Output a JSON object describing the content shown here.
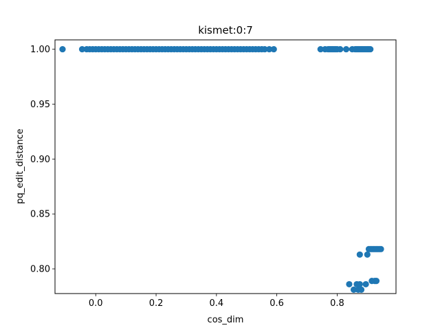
{
  "chart_data": {
    "type": "scatter",
    "title": "kismet:0:7",
    "xlabel": "cos_dim",
    "ylabel": "pq_edit_distance",
    "xlim": [
      -0.135,
      0.995
    ],
    "ylim": [
      0.7775,
      1.0085
    ],
    "xticks": [
      0.0,
      0.2,
      0.4,
      0.6,
      0.8
    ],
    "xtick_labels": [
      "0.0",
      "0.2",
      "0.4",
      "0.6",
      "0.8"
    ],
    "yticks": [
      0.8,
      0.85,
      0.9,
      0.95,
      1.0
    ],
    "ytick_labels": [
      "0.80",
      "0.85",
      "0.90",
      "0.95",
      "1.00"
    ],
    "grid": false,
    "color": "#1f77b4",
    "series": [
      {
        "points": [
          [
            -0.11,
            1.0
          ],
          [
            -0.045,
            1.0
          ],
          [
            -0.03,
            1.0
          ],
          [
            -0.02,
            1.0
          ],
          [
            -0.01,
            1.0
          ],
          [
            0.0,
            1.0
          ],
          [
            0.01,
            1.0
          ],
          [
            0.02,
            1.0
          ],
          [
            0.03,
            1.0
          ],
          [
            0.04,
            1.0
          ],
          [
            0.05,
            1.0
          ],
          [
            0.06,
            1.0
          ],
          [
            0.07,
            1.0
          ],
          [
            0.08,
            1.0
          ],
          [
            0.09,
            1.0
          ],
          [
            0.1,
            1.0
          ],
          [
            0.11,
            1.0
          ],
          [
            0.12,
            1.0
          ],
          [
            0.13,
            1.0
          ],
          [
            0.14,
            1.0
          ],
          [
            0.15,
            1.0
          ],
          [
            0.16,
            1.0
          ],
          [
            0.17,
            1.0
          ],
          [
            0.18,
            1.0
          ],
          [
            0.19,
            1.0
          ],
          [
            0.2,
            1.0
          ],
          [
            0.21,
            1.0
          ],
          [
            0.22,
            1.0
          ],
          [
            0.23,
            1.0
          ],
          [
            0.24,
            1.0
          ],
          [
            0.25,
            1.0
          ],
          [
            0.26,
            1.0
          ],
          [
            0.27,
            1.0
          ],
          [
            0.28,
            1.0
          ],
          [
            0.29,
            1.0
          ],
          [
            0.3,
            1.0
          ],
          [
            0.31,
            1.0
          ],
          [
            0.32,
            1.0
          ],
          [
            0.33,
            1.0
          ],
          [
            0.34,
            1.0
          ],
          [
            0.35,
            1.0
          ],
          [
            0.36,
            1.0
          ],
          [
            0.37,
            1.0
          ],
          [
            0.38,
            1.0
          ],
          [
            0.39,
            1.0
          ],
          [
            0.4,
            1.0
          ],
          [
            0.41,
            1.0
          ],
          [
            0.42,
            1.0
          ],
          [
            0.43,
            1.0
          ],
          [
            0.44,
            1.0
          ],
          [
            0.45,
            1.0
          ],
          [
            0.46,
            1.0
          ],
          [
            0.47,
            1.0
          ],
          [
            0.48,
            1.0
          ],
          [
            0.49,
            1.0
          ],
          [
            0.5,
            1.0
          ],
          [
            0.51,
            1.0
          ],
          [
            0.52,
            1.0
          ],
          [
            0.53,
            1.0
          ],
          [
            0.54,
            1.0
          ],
          [
            0.55,
            1.0
          ],
          [
            0.56,
            1.0
          ],
          [
            0.575,
            1.0
          ],
          [
            0.59,
            1.0
          ],
          [
            0.745,
            1.0
          ],
          [
            0.76,
            1.0
          ],
          [
            0.77,
            1.0
          ],
          [
            0.775,
            1.0
          ],
          [
            0.78,
            1.0
          ],
          [
            0.785,
            1.0
          ],
          [
            0.79,
            1.0
          ],
          [
            0.795,
            1.0
          ],
          [
            0.8,
            1.0
          ],
          [
            0.81,
            1.0
          ],
          [
            0.83,
            1.0
          ],
          [
            0.85,
            1.0
          ],
          [
            0.86,
            1.0
          ],
          [
            0.865,
            1.0
          ],
          [
            0.87,
            1.0
          ],
          [
            0.875,
            1.0
          ],
          [
            0.88,
            1.0
          ],
          [
            0.885,
            1.0
          ],
          [
            0.89,
            1.0
          ],
          [
            0.895,
            1.0
          ],
          [
            0.9,
            1.0
          ],
          [
            0.905,
            1.0
          ],
          [
            0.91,
            1.0
          ],
          [
            0.875,
            0.813
          ],
          [
            0.9,
            0.813
          ],
          [
            0.905,
            0.818
          ],
          [
            0.91,
            0.818
          ],
          [
            0.915,
            0.818
          ],
          [
            0.92,
            0.818
          ],
          [
            0.925,
            0.818
          ],
          [
            0.93,
            0.818
          ],
          [
            0.935,
            0.818
          ],
          [
            0.94,
            0.818
          ],
          [
            0.945,
            0.818
          ],
          [
            0.84,
            0.786
          ],
          [
            0.865,
            0.786
          ],
          [
            0.875,
            0.786
          ],
          [
            0.895,
            0.786
          ],
          [
            0.855,
            0.781
          ],
          [
            0.87,
            0.781
          ],
          [
            0.88,
            0.781
          ],
          [
            0.915,
            0.789
          ],
          [
            0.925,
            0.789
          ],
          [
            0.93,
            0.789
          ]
        ]
      }
    ]
  }
}
